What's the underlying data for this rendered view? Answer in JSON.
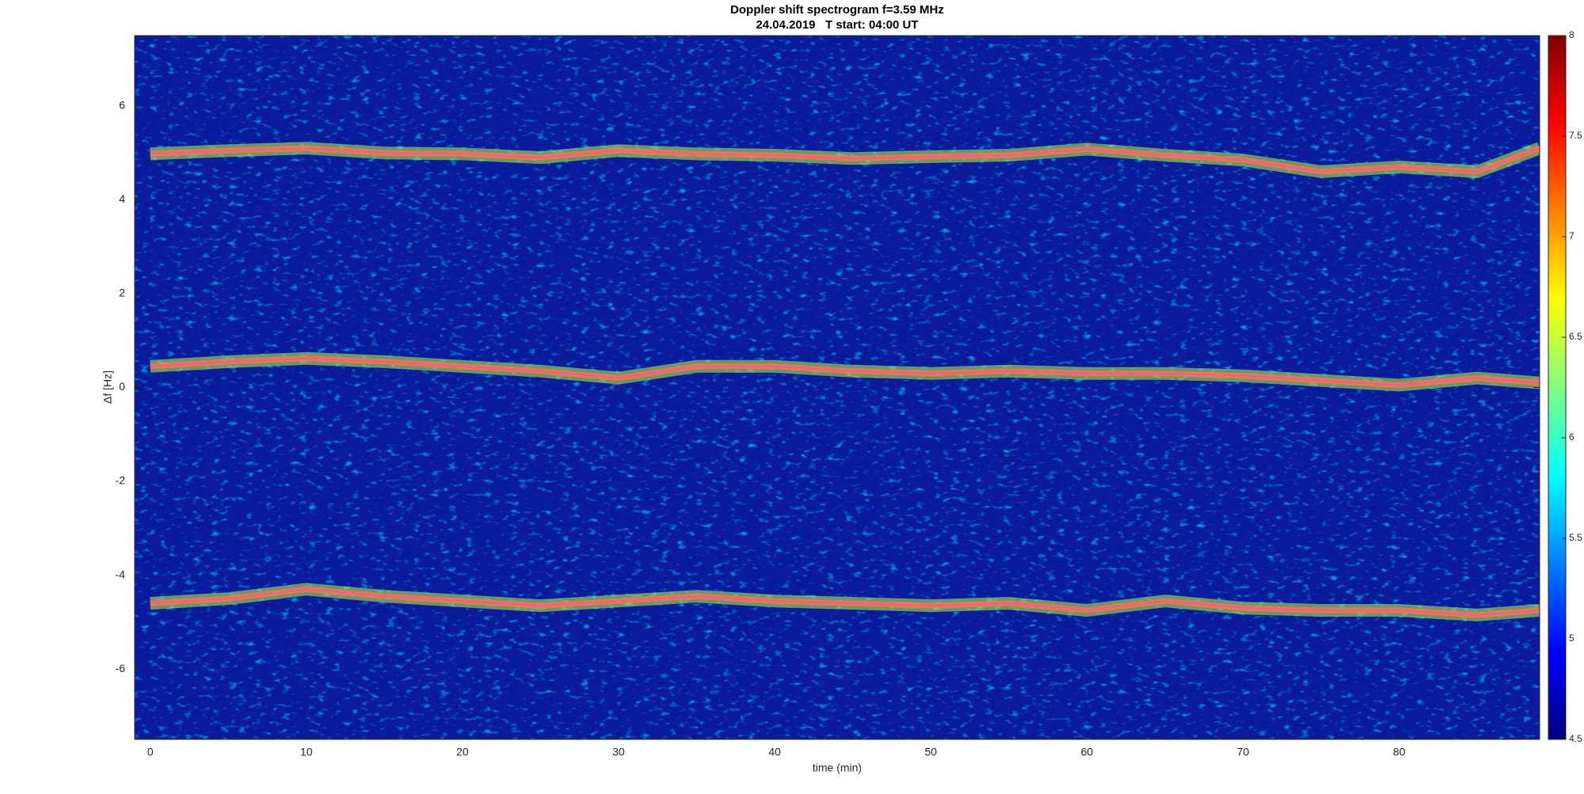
{
  "chart_data": {
    "type": "spectrogram",
    "title": "Doppler shift spectrogram f=3.59 MHz",
    "subtitle": "24.04.2019   T start: 04:00 UT",
    "x_label": "time (min)",
    "y_label": "Δf [Hz]",
    "x": [
      0,
      5,
      10,
      15,
      20,
      25,
      30,
      35,
      40,
      45,
      50,
      55,
      60,
      65,
      70,
      75,
      80,
      85,
      89
    ],
    "series": [
      {
        "color": "#ff40ff",
        "values": [
          4.98,
          5.05,
          5.1,
          5.0,
          4.98,
          4.9,
          5.05,
          4.98,
          4.95,
          4.88,
          4.92,
          4.95,
          5.08,
          4.95,
          4.85,
          4.6,
          4.7,
          4.6,
          5.1
        ]
      },
      {
        "color": "#ff40ff",
        "values": [
          0.45,
          0.55,
          0.62,
          0.55,
          0.45,
          0.35,
          0.2,
          0.45,
          0.45,
          0.35,
          0.3,
          0.35,
          0.3,
          0.3,
          0.25,
          0.15,
          0.05,
          0.2,
          0.1
        ]
      },
      {
        "color": "#ff40ff",
        "values": [
          -4.6,
          -4.5,
          -4.3,
          -4.45,
          -4.55,
          -4.65,
          -4.55,
          -4.45,
          -4.55,
          -4.6,
          -4.65,
          -4.6,
          -4.75,
          -4.55,
          -4.7,
          -4.75,
          -4.75,
          -4.85,
          -4.75
        ]
      }
    ],
    "xlim": [
      -1,
      89
    ],
    "ylim": [
      -7.5,
      7.5
    ],
    "xticks": [
      0,
      10,
      20,
      30,
      40,
      50,
      60,
      70,
      80
    ],
    "yticks": [
      -6,
      -4,
      -2,
      0,
      2,
      4,
      6
    ],
    "colormap": "jet",
    "clim": [
      4.5,
      8
    ],
    "cticks": [
      4.5,
      5,
      5.5,
      6,
      6.5,
      7,
      7.5,
      8
    ]
  }
}
